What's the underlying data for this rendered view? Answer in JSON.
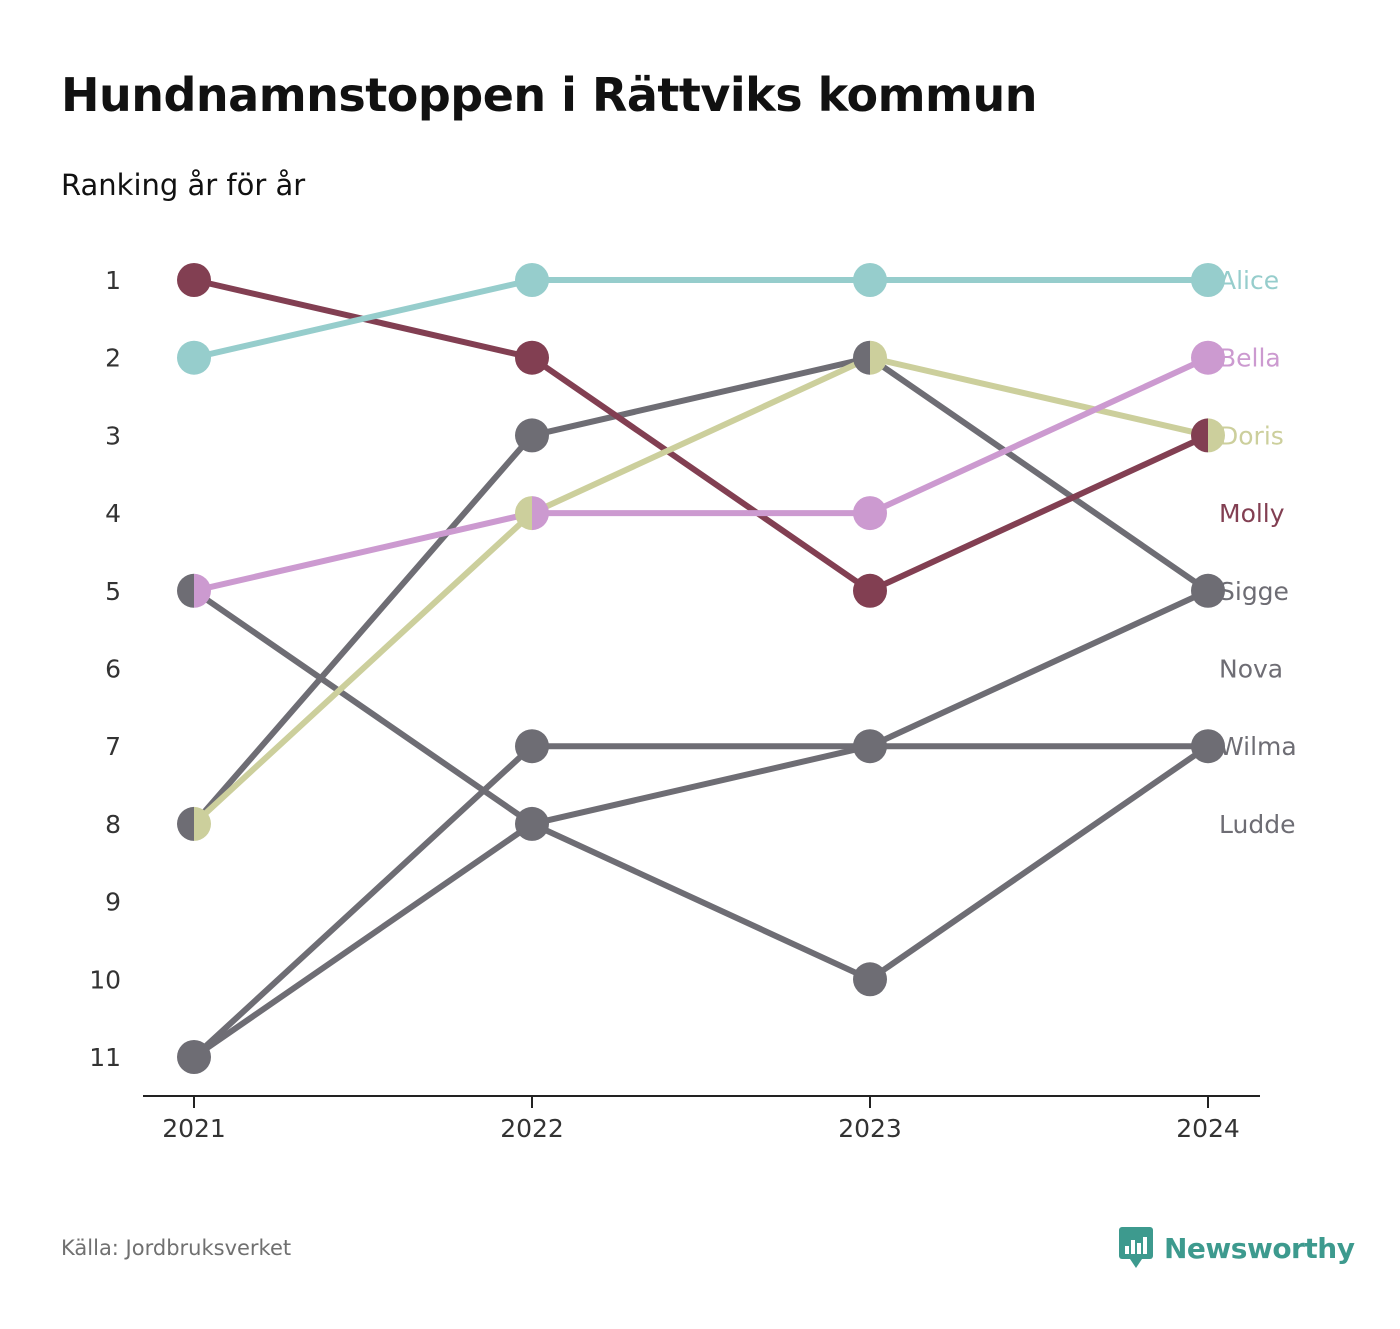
{
  "title": "Hundnamnstoppen i Rättviks kommun",
  "subtitle": "Ranking år för år",
  "source": "Källa: Jordbruksverket",
  "brand": {
    "name": "Newsworthy",
    "icon": "newsworthy-logo-icon",
    "color": "#3d9a8e"
  },
  "chart_data": {
    "type": "line",
    "subtype": "bump",
    "x": [
      "2021",
      "2022",
      "2023",
      "2024"
    ],
    "y_ticks": [
      1,
      2,
      3,
      4,
      5,
      6,
      7,
      8,
      9,
      10,
      11
    ],
    "ylim": [
      1,
      11
    ],
    "y_inverted": true,
    "grid": false,
    "legend": "right-end labels",
    "series": [
      {
        "name": "Ludde",
        "color": "#6e6d74",
        "values": [
          11,
          8,
          7,
          7
        ]
      },
      {
        "name": "Wilma",
        "color": "#6e6d74",
        "values": [
          5,
          8,
          10,
          7
        ]
      },
      {
        "name": "Nova",
        "color": "#6e6d74",
        "values": [
          11,
          7,
          7,
          5
        ]
      },
      {
        "name": "Sigge",
        "color": "#6e6d74",
        "values": [
          8,
          3,
          2,
          5
        ]
      },
      {
        "name": "Molly",
        "color": "#823f52",
        "values": [
          1,
          2,
          5,
          3
        ]
      },
      {
        "name": "Doris",
        "color": "#cccf9c",
        "values": [
          8,
          4,
          2,
          3
        ]
      },
      {
        "name": "Bella",
        "color": "#cc9ad0",
        "values": [
          5,
          4,
          4,
          2
        ]
      },
      {
        "name": "Alice",
        "color": "#96cdcc",
        "values": [
          2,
          1,
          1,
          1
        ]
      }
    ],
    "end_labels": [
      "Alice",
      "Bella",
      "Doris",
      "Molly",
      "Sigge",
      "Nova",
      "Wilma",
      "Ludde"
    ]
  }
}
